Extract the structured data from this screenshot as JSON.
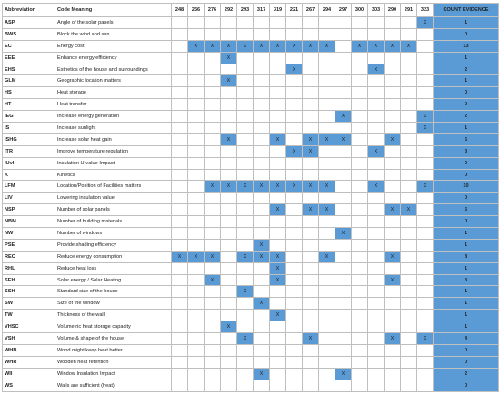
{
  "table": {
    "header": {
      "abbreviation": "Abbreviation",
      "meaning": "Code Meaning",
      "columns": [
        "248",
        "256",
        "276",
        "292",
        "293",
        "317",
        "319",
        "221",
        "267",
        "294",
        "297",
        "300",
        "303",
        "290",
        "291",
        "323"
      ],
      "count": "COUNT EVIDENCE"
    },
    "mark_text": "X",
    "rows": [
      {
        "abbr": "ASP",
        "meaning": "Angle of the solar panels",
        "checked": [
          "323"
        ],
        "count": 1
      },
      {
        "abbr": "BWS",
        "meaning": "Block the wind and sun",
        "checked": [],
        "count": 0
      },
      {
        "abbr": "EC",
        "meaning": "Energy cost",
        "checked": [
          "256",
          "276",
          "292",
          "293",
          "317",
          "319",
          "221",
          "267",
          "294",
          "300",
          "303",
          "290",
          "291"
        ],
        "count": 13
      },
      {
        "abbr": "EEE",
        "meaning": "Enhance energy efficiency",
        "checked": [
          "292"
        ],
        "count": 1
      },
      {
        "abbr": "EHS",
        "meaning": "Esthetics of the house and surroundings",
        "checked": [
          "221",
          "303"
        ],
        "count": 2
      },
      {
        "abbr": "GLM",
        "meaning": "Geographic location matters",
        "checked": [
          "292"
        ],
        "count": 1
      },
      {
        "abbr": "HS",
        "meaning": "Heat storage",
        "checked": [],
        "count": 0
      },
      {
        "abbr": "HT",
        "meaning": "Heat transfer",
        "checked": [],
        "count": 0
      },
      {
        "abbr": "IEG",
        "meaning": "Increase energy generation",
        "checked": [
          "297",
          "323"
        ],
        "count": 2
      },
      {
        "abbr": "IS",
        "meaning": "Increase sunlight",
        "checked": [
          "323"
        ],
        "count": 1
      },
      {
        "abbr": "ISHG",
        "meaning": "Increase solar heat gain",
        "checked": [
          "292",
          "319",
          "267",
          "294",
          "297",
          "290"
        ],
        "count": 6
      },
      {
        "abbr": "ITR",
        "meaning": "Improve temperature regulation",
        "checked": [
          "221",
          "267",
          "303"
        ],
        "count": 3
      },
      {
        "abbr": "IUvI",
        "meaning": "Insulation U-value Impact",
        "checked": [],
        "count": 0
      },
      {
        "abbr": "K",
        "meaning": "Kinetics",
        "checked": [],
        "count": 0
      },
      {
        "abbr": "LFM",
        "meaning": "Location/Position of Facilities matters",
        "checked": [
          "276",
          "292",
          "293",
          "317",
          "319",
          "221",
          "267",
          "294",
          "303",
          "323"
        ],
        "count": 10
      },
      {
        "abbr": "LIV",
        "meaning": "Lowering insulation value",
        "checked": [],
        "count": 0
      },
      {
        "abbr": "NSP",
        "meaning": "Number of solar panels",
        "checked": [
          "319",
          "267",
          "294",
          "290",
          "291"
        ],
        "count": 5
      },
      {
        "abbr": "NBM",
        "meaning": "Number of building materials",
        "checked": [],
        "count": 0
      },
      {
        "abbr": "NW",
        "meaning": "Number of windows",
        "checked": [
          "297"
        ],
        "count": 1
      },
      {
        "abbr": "PSE",
        "meaning": "Provide shading efficiency",
        "checked": [
          "317"
        ],
        "count": 1
      },
      {
        "abbr": "REC",
        "meaning": "Reduce energy consumption",
        "checked": [
          "248",
          "256",
          "276",
          "293",
          "317",
          "319",
          "294",
          "290"
        ],
        "count": 8
      },
      {
        "abbr": "RHL",
        "meaning": "Reduce heat loss",
        "checked": [
          "319"
        ],
        "count": 1
      },
      {
        "abbr": "SEH",
        "meaning": "Solar energy / Solar Heating",
        "checked": [
          "276",
          "319",
          "290"
        ],
        "count": 3
      },
      {
        "abbr": "SSH",
        "meaning": "Standard size of the house",
        "checked": [
          "293"
        ],
        "count": 1
      },
      {
        "abbr": "SW",
        "meaning": "Size of the window",
        "checked": [
          "317"
        ],
        "count": 1
      },
      {
        "abbr": "TW",
        "meaning": "Thickness of the wall",
        "checked": [
          "319"
        ],
        "count": 1
      },
      {
        "abbr": "VHSC",
        "meaning": "Volumetric heat storage  capacity",
        "checked": [
          "292"
        ],
        "count": 1
      },
      {
        "abbr": "VSH",
        "meaning": "Volume & shape of the house",
        "checked": [
          "293",
          "267",
          "290",
          "323"
        ],
        "count": 4
      },
      {
        "abbr": "WHB",
        "meaning": "Wood might keep heat better",
        "checked": [],
        "count": 0
      },
      {
        "abbr": "WHR",
        "meaning": "Wooden heat retention",
        "checked": [],
        "count": 0
      },
      {
        "abbr": "WII",
        "meaning": "Window Insulation Impact",
        "checked": [
          "317",
          "297"
        ],
        "count": 2
      },
      {
        "abbr": "WS",
        "meaning": "Walls are sufficient (heat)",
        "checked": [],
        "count": 0
      }
    ]
  }
}
